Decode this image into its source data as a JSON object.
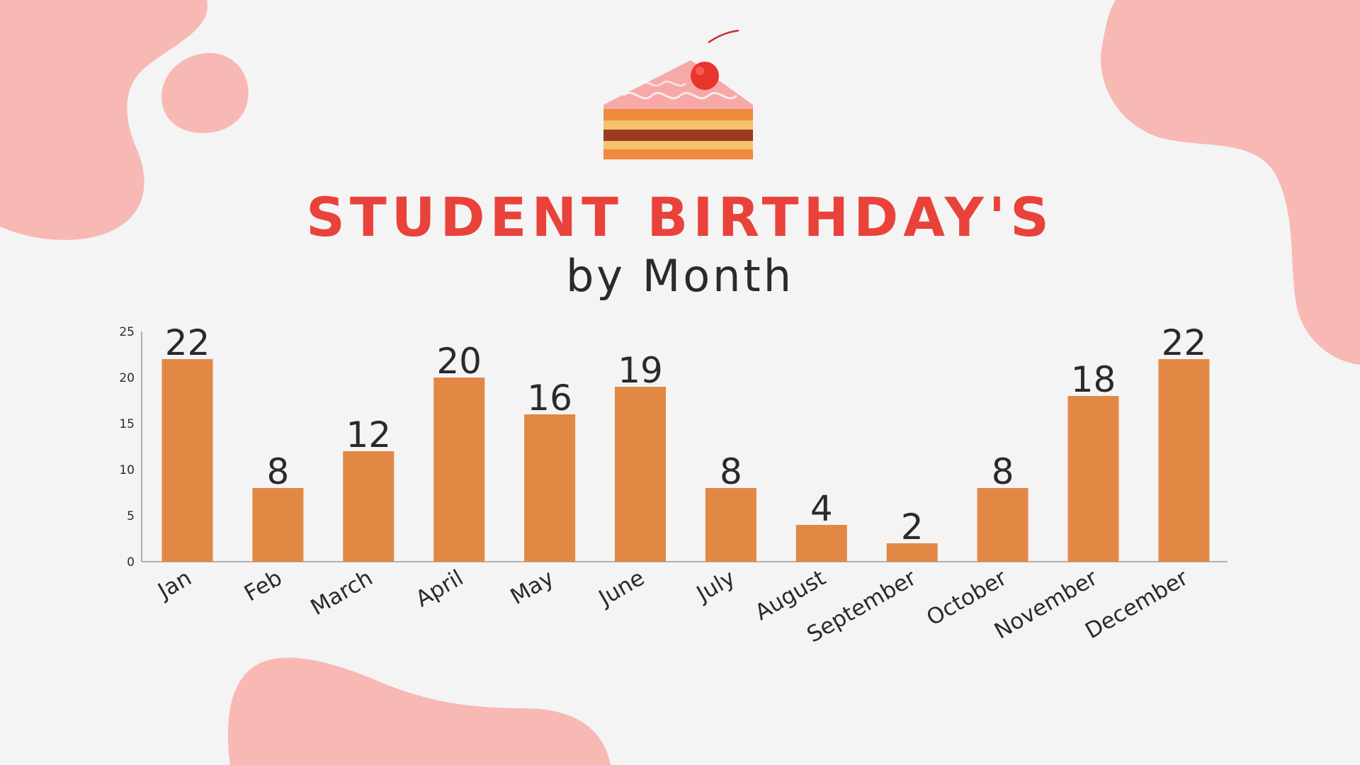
{
  "header": {
    "title": "STUDENT BIRTHDAY'S",
    "subtitle": "by Month"
  },
  "colors": {
    "background": "#f4f4f4",
    "blob": "#f8b8b4",
    "title": "#e9423a",
    "bar": "#e28845",
    "text": "#2a2a2a",
    "axis": "#999999"
  },
  "icons": {
    "cake": "cake-slice-icon"
  },
  "chart_data": {
    "type": "bar",
    "title": "STUDENT BIRTHDAY'S",
    "subtitle": "by Month",
    "categories": [
      "Jan",
      "Feb",
      "March",
      "April",
      "May",
      "June",
      "July",
      "August",
      "September",
      "October",
      "November",
      "December"
    ],
    "values": [
      22,
      8,
      12,
      20,
      16,
      19,
      8,
      4,
      2,
      8,
      18,
      22
    ],
    "ylim": [
      0,
      25
    ],
    "yticks": [
      0,
      5,
      10,
      15,
      20,
      25
    ],
    "xlabel": "",
    "ylabel": "",
    "grid": false,
    "legend": "none",
    "data_labels": true
  }
}
